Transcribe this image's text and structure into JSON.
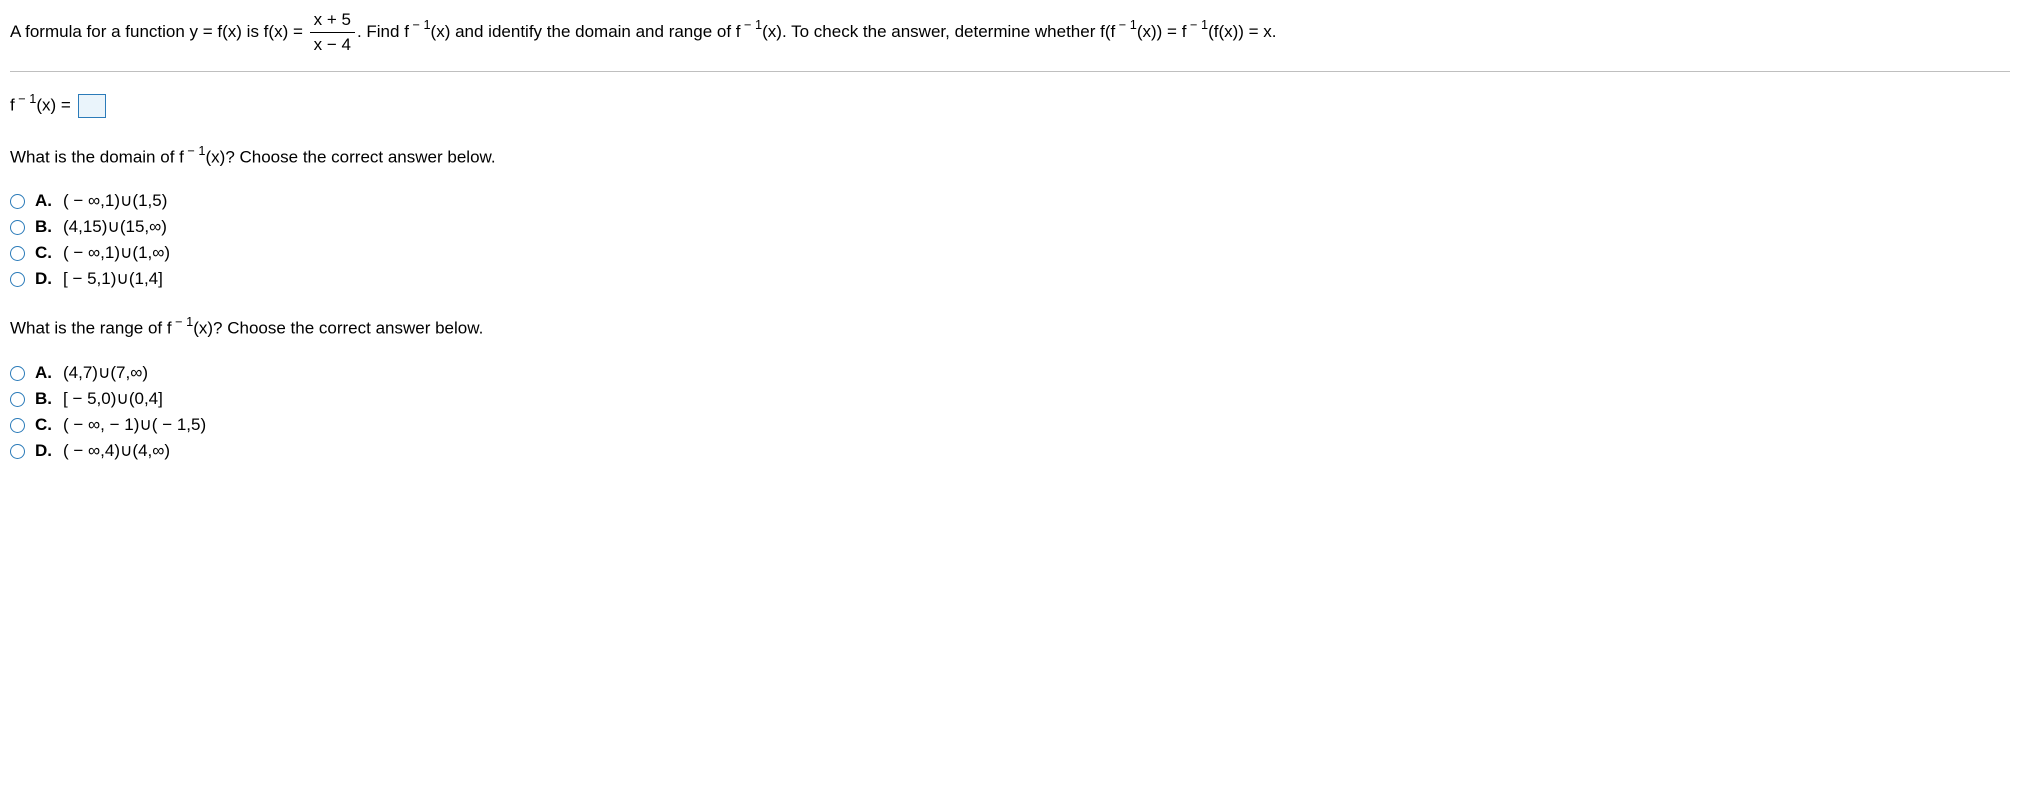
{
  "problem": {
    "part1": "A formula for a function y = f(x) is f(x) = ",
    "frac_num": "x + 5",
    "frac_den": "x − 4",
    "part2": ". Find f",
    "sup1": " − 1",
    "part3": "(x) and identify the domain and range of f",
    "sup2": " − 1",
    "part4": "(x). To check the answer, determine whether f(f",
    "sup3": " − 1",
    "part5": "(x)) = f",
    "sup4": " − 1",
    "part6": "(f(x)) = x."
  },
  "answer": {
    "prefix": "f",
    "sup": " − 1",
    "suffix": "(x) = "
  },
  "q1": {
    "prefix": "What is the domain of f",
    "sup": " − 1",
    "suffix": "(x)? Choose the correct answer below.",
    "choices": [
      {
        "label": "A.",
        "text": "( − ∞,1)∪(1,5)"
      },
      {
        "label": "B.",
        "text": "(4,15)∪(15,∞)"
      },
      {
        "label": "C.",
        "text": "( − ∞,1)∪(1,∞)"
      },
      {
        "label": "D.",
        "text": "[ − 5,1)∪(1,4]"
      }
    ]
  },
  "q2": {
    "prefix": "What is the range of f",
    "sup": " − 1",
    "suffix": "(x)? Choose the correct answer below.",
    "choices": [
      {
        "label": "A.",
        "text": "(4,7)∪(7,∞)"
      },
      {
        "label": "B.",
        "text": "[ − 5,0)∪(0,4]"
      },
      {
        "label": "C.",
        "text": "( − ∞, − 1)∪( − 1,5)"
      },
      {
        "label": "D.",
        "text": "( − ∞,4)∪(4,∞)"
      }
    ]
  }
}
